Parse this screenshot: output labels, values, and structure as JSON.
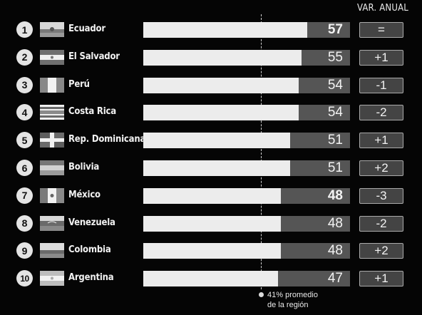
{
  "header": {
    "var_label": "VAR. ANUAL"
  },
  "average": {
    "line1": "41% promedio",
    "line2": "de la región",
    "value": 41
  },
  "chart_data": {
    "type": "bar",
    "orientation": "horizontal",
    "xlim": [
      0,
      100
    ],
    "categories": [
      "Ecuador",
      "El Salvador",
      "Perú",
      "Costa Rica",
      "Rep. Dominicana",
      "Bolivia",
      "México",
      "Venezuela",
      "Colombia",
      "Argentina"
    ],
    "values": [
      57,
      55,
      54,
      54,
      51,
      51,
      48,
      48,
      48,
      47
    ],
    "reference_line": {
      "value": 41,
      "label": "41% promedio de la región"
    },
    "rows": [
      {
        "rank": "1",
        "country": "Ecuador",
        "value": 57,
        "value_label": "57",
        "bold": true,
        "var": "=",
        "flag": "ecuador"
      },
      {
        "rank": "2",
        "country": "El Salvador",
        "value": 55,
        "value_label": "55",
        "bold": false,
        "var": "+1",
        "flag": "el-salvador"
      },
      {
        "rank": "3",
        "country": "Perú",
        "value": 54,
        "value_label": "54",
        "bold": false,
        "var": "-1",
        "flag": "peru"
      },
      {
        "rank": "4",
        "country": "Costa Rica",
        "value": 54,
        "value_label": "54",
        "bold": false,
        "var": "-2",
        "flag": "costa-rica"
      },
      {
        "rank": "5",
        "country": "Rep. Dominicana",
        "value": 51,
        "value_label": "51",
        "bold": false,
        "var": "+1",
        "flag": "dominican-republic"
      },
      {
        "rank": "6",
        "country": "Bolivia",
        "value": 51,
        "value_label": "51",
        "bold": false,
        "var": "+2",
        "flag": "bolivia"
      },
      {
        "rank": "7",
        "country": "México",
        "value": 48,
        "value_label": "48",
        "bold": true,
        "var": "-3",
        "flag": "mexico"
      },
      {
        "rank": "8",
        "country": "Venezuela",
        "value": 48,
        "value_label": "48",
        "bold": false,
        "var": "-2",
        "flag": "venezuela"
      },
      {
        "rank": "9",
        "country": "Colombia",
        "value": 48,
        "value_label": "48",
        "bold": false,
        "var": "+2",
        "flag": "colombia"
      },
      {
        "rank": "10",
        "country": "Argentina",
        "value": 47,
        "value_label": "47",
        "bold": false,
        "var": "+1",
        "flag": "argentina"
      }
    ]
  },
  "colors": {
    "background": "#050505",
    "bar_fill": "#ececec",
    "bar_track": "#555555",
    "badge_bg": "#444444"
  }
}
